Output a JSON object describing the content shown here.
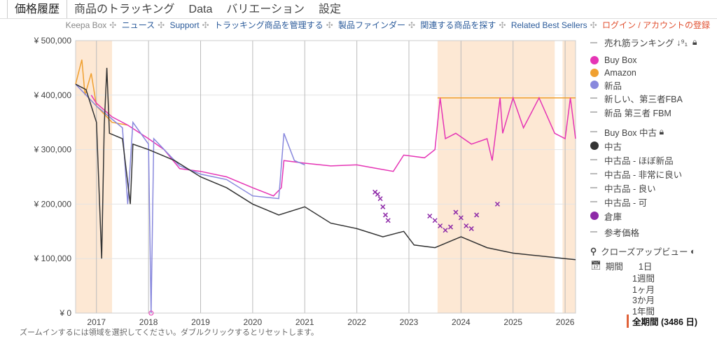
{
  "tabs": [
    "価格履歴",
    "商品のトラッキング",
    "Data",
    "バリエーション",
    "設定"
  ],
  "links": {
    "keepa": "Keepa Box",
    "news": "ニュース",
    "support": "Support",
    "manage": "トラッキング商品を管理する",
    "finder": "製品ファインダー",
    "related": "関連する商品を探す",
    "best": "Related Best Sellers",
    "login": "ログイン / アカウントの登録"
  },
  "legend": {
    "sales_rank": "売れ筋ランキング",
    "buybox": "Buy Box",
    "amazon": "Amazon",
    "new": "新品",
    "new_fba": "新しい、第三者FBA",
    "new_fbm": "新品 第三者 FBM",
    "buybox_used": "Buy Box 中古",
    "used": "中古",
    "used_like_new": "中古品 - ほぼ新品",
    "used_very_good": "中古品 - 非常に良い",
    "used_good": "中古品 - 良い",
    "used_acceptable": "中古品 - 可",
    "warehouse": "倉庫",
    "list_price": "参考価格"
  },
  "closeup": "クローズアップビュー",
  "range": {
    "label": "期間",
    "options": [
      "1日",
      "1週間",
      "1ヶ月",
      "3か月",
      "1年間"
    ],
    "selected": "全期間 (3486 日)"
  },
  "hint": "ズームインするには領域を選択してください。ダブルクリックするとリセットします。",
  "colors": {
    "buybox": "#e535b5",
    "amazon": "#f0a030",
    "new": "#8888dd",
    "used": "#333333",
    "warehouse": "#8e2aa8",
    "shade": "#fde8d4"
  },
  "chart_data": {
    "type": "line",
    "xlim": [
      2016.6,
      2026.2
    ],
    "ylim": [
      0,
      500000
    ],
    "x_ticks": [
      "2017",
      "2018",
      "2019",
      "2020",
      "2021",
      "2022",
      "2023",
      "2024",
      "2025",
      "2026"
    ],
    "y_ticks": [
      "¥ 0",
      "¥ 100,000",
      "¥ 200,000",
      "¥ 300,000",
      "¥ 400,000",
      "¥ 500,000"
    ],
    "shaded": [
      [
        2016.6,
        2017.3
      ],
      [
        2023.55,
        2025.8
      ],
      [
        2025.95,
        2026.2
      ]
    ],
    "series": [
      {
        "name": "Amazon",
        "color": "#f0a030",
        "points": [
          [
            2016.6,
            420000
          ],
          [
            2016.72,
            465000
          ],
          [
            2016.78,
            400000
          ],
          [
            2016.9,
            440000
          ],
          [
            2017.0,
            380000
          ],
          [
            2017.3,
            350000
          ],
          [
            2017.6,
            345000
          ],
          [
            2017.65,
            null
          ],
          [
            2023.55,
            395000
          ],
          [
            2026.2,
            395000
          ]
        ]
      },
      {
        "name": "Buy Box",
        "color": "#e535b5",
        "points": [
          [
            2016.9,
            400000
          ],
          [
            2017.0,
            385000
          ],
          [
            2017.3,
            360000
          ],
          [
            2017.6,
            345000
          ],
          [
            2018.0,
            320000
          ],
          [
            2018.3,
            300000
          ],
          [
            2018.6,
            265000
          ],
          [
            2019.0,
            260000
          ],
          [
            2019.5,
            250000
          ],
          [
            2020.0,
            230000
          ],
          [
            2020.4,
            215000
          ],
          [
            2020.55,
            230000
          ],
          [
            2020.6,
            280000
          ],
          [
            2021.0,
            275000
          ],
          [
            2021.5,
            270000
          ],
          [
            2022.0,
            272000
          ],
          [
            2022.4,
            265000
          ],
          [
            2022.7,
            260000
          ],
          [
            2022.9,
            290000
          ],
          [
            2023.3,
            285000
          ],
          [
            2023.5,
            300000
          ],
          [
            2023.6,
            395000
          ],
          [
            2023.7,
            320000
          ],
          [
            2023.9,
            330000
          ],
          [
            2024.2,
            310000
          ],
          [
            2024.5,
            320000
          ],
          [
            2024.6,
            280000
          ],
          [
            2024.75,
            395000
          ],
          [
            2024.8,
            330000
          ],
          [
            2025.0,
            395000
          ],
          [
            2025.2,
            340000
          ],
          [
            2025.5,
            395000
          ],
          [
            2025.8,
            330000
          ],
          [
            2026.0,
            320000
          ],
          [
            2026.1,
            395000
          ],
          [
            2026.2,
            320000
          ]
        ]
      },
      {
        "name": "新品",
        "color": "#8888dd",
        "points": [
          [
            2016.6,
            420000
          ],
          [
            2017.0,
            380000
          ],
          [
            2017.5,
            340000
          ],
          [
            2017.6,
            200000
          ],
          [
            2017.7,
            350000
          ],
          [
            2018.0,
            310000
          ],
          [
            2018.05,
            0
          ],
          [
            2018.1,
            320000
          ],
          [
            2018.6,
            270000
          ],
          [
            2019.0,
            255000
          ],
          [
            2019.5,
            245000
          ],
          [
            2020.0,
            215000
          ],
          [
            2020.5,
            210000
          ],
          [
            2020.6,
            330000
          ],
          [
            2020.8,
            280000
          ],
          [
            2021.0,
            272000
          ]
        ]
      },
      {
        "name": "中古",
        "color": "#333333",
        "points": [
          [
            2016.6,
            420000
          ],
          [
            2016.8,
            410000
          ],
          [
            2017.0,
            350000
          ],
          [
            2017.1,
            100000
          ],
          [
            2017.15,
            345000
          ],
          [
            2017.2,
            450000
          ],
          [
            2017.25,
            330000
          ],
          [
            2017.5,
            320000
          ],
          [
            2017.65,
            200000
          ],
          [
            2017.7,
            310000
          ],
          [
            2018.0,
            300000
          ],
          [
            2018.5,
            280000
          ],
          [
            2019.0,
            250000
          ],
          [
            2019.5,
            230000
          ],
          [
            2020.0,
            200000
          ],
          [
            2020.5,
            180000
          ],
          [
            2021.0,
            195000
          ],
          [
            2021.5,
            165000
          ],
          [
            2022.0,
            155000
          ],
          [
            2022.5,
            140000
          ],
          [
            2022.9,
            150000
          ],
          [
            2023.1,
            125000
          ],
          [
            2023.5,
            120000
          ],
          [
            2024.0,
            140000
          ],
          [
            2024.5,
            120000
          ],
          [
            2025.0,
            110000
          ],
          [
            2025.5,
            105000
          ],
          [
            2026.0,
            100000
          ],
          [
            2026.2,
            98000
          ]
        ]
      }
    ],
    "warehouse": [
      [
        2022.35,
        222000
      ],
      [
        2022.4,
        218000
      ],
      [
        2022.45,
        210000
      ],
      [
        2022.5,
        195000
      ],
      [
        2022.55,
        180000
      ],
      [
        2022.6,
        170000
      ],
      [
        2023.4,
        178000
      ],
      [
        2023.5,
        170000
      ],
      [
        2023.6,
        160000
      ],
      [
        2023.7,
        152000
      ],
      [
        2023.8,
        158000
      ],
      [
        2023.9,
        185000
      ],
      [
        2024.0,
        175000
      ],
      [
        2024.1,
        160000
      ],
      [
        2024.2,
        155000
      ],
      [
        2024.3,
        180000
      ],
      [
        2024.7,
        200000
      ]
    ],
    "list_price_point": [
      2018.05,
      0
    ]
  }
}
